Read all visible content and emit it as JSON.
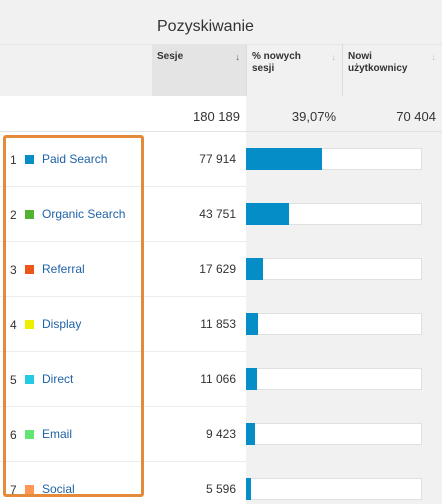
{
  "header": {
    "group_title": "Pozyskiwanie",
    "columns": [
      {
        "label": "Sesje",
        "sort_icon": "sort-down-arrow"
      },
      {
        "label": "% nowych sesji",
        "sort_icon": "sort-arrow"
      },
      {
        "label": "Nowi użytkownicy",
        "sort_icon": "sort-arrow"
      }
    ]
  },
  "totals": {
    "sessions": "180 189",
    "new_sessions_pct": "39,07%",
    "new_users": "70 404"
  },
  "rows": [
    {
      "index": "1",
      "name": "Paid Search",
      "color": "#058dc7",
      "sessions": "77 914",
      "share": 0.432
    },
    {
      "index": "2",
      "name": "Organic Search",
      "color": "#50b432",
      "sessions": "43 751",
      "share": 0.243
    },
    {
      "index": "3",
      "name": "Referral",
      "color": "#ed561b",
      "sessions": "17 629",
      "share": 0.098
    },
    {
      "index": "4",
      "name": "Display",
      "color": "#edef00",
      "sessions": "11 853",
      "share": 0.066
    },
    {
      "index": "5",
      "name": "Direct",
      "color": "#24cbe5",
      "sessions": "11 066",
      "share": 0.061
    },
    {
      "index": "6",
      "name": "Email",
      "color": "#64e572",
      "sessions": "9 423",
      "share": 0.052
    },
    {
      "index": "7",
      "name": "Social",
      "color": "#ff9655",
      "sessions": "5 596",
      "share": 0.031
    }
  ]
}
